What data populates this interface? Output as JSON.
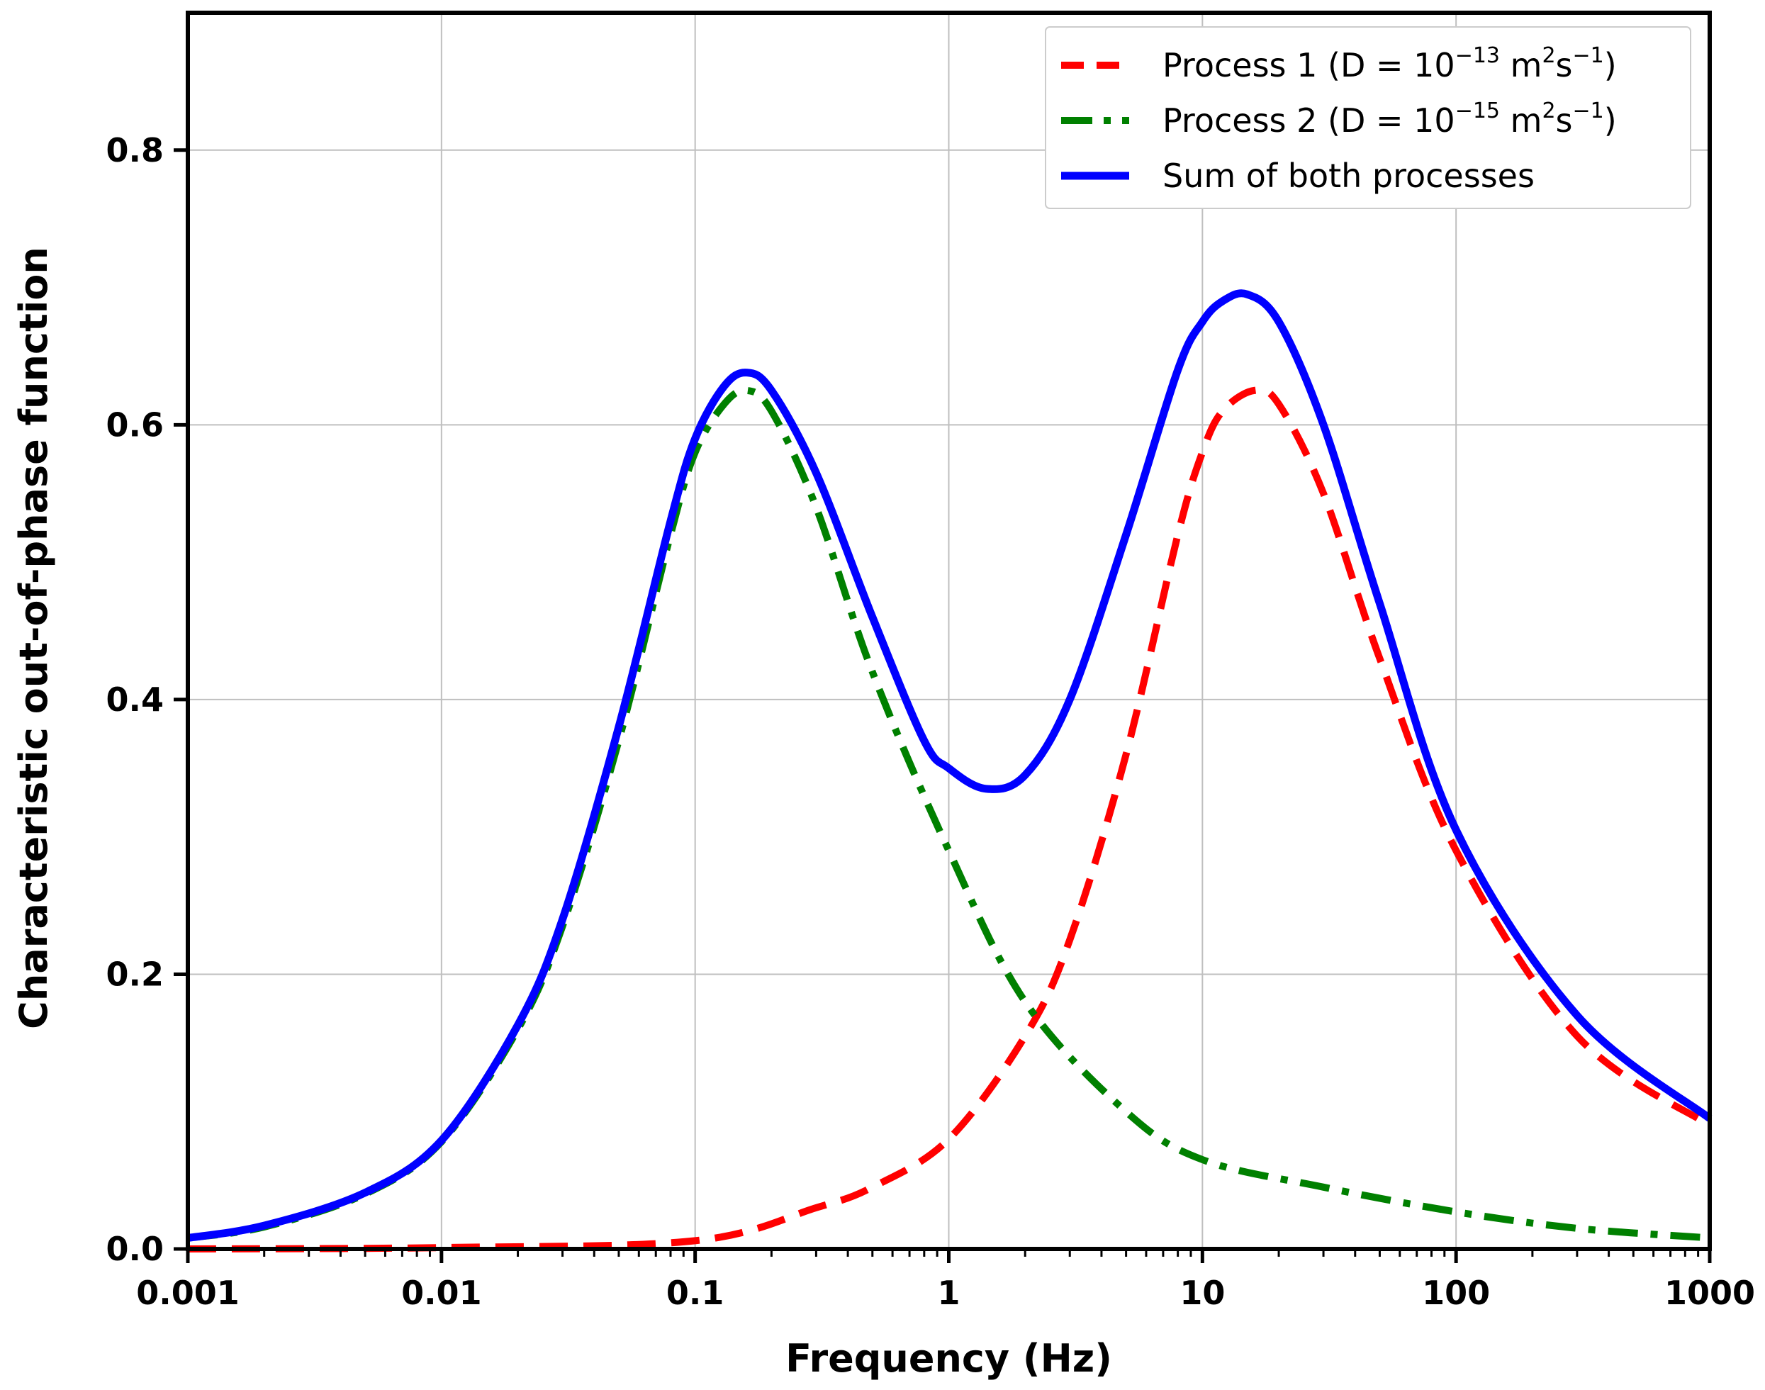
{
  "chart_data": {
    "type": "line",
    "title": "",
    "xlabel": "Frequency (Hz)",
    "ylabel": "Characteristic out-of-phase function",
    "xscale": "log",
    "xlim": [
      0.001,
      1000
    ],
    "ylim": [
      0,
      0.9
    ],
    "grid": true,
    "legend_position": "top-right",
    "x_ticks": [
      0.001,
      0.01,
      0.1,
      1,
      10,
      100,
      1000
    ],
    "x_tick_labels": [
      "0.001",
      "0.01",
      "0.1",
      "1",
      "10",
      "100",
      "1000"
    ],
    "y_ticks": [
      0.0,
      0.2,
      0.4,
      0.6,
      0.8
    ],
    "y_tick_labels": [
      "0.0",
      "0.2",
      "0.4",
      "0.6",
      "0.8"
    ],
    "series": [
      {
        "name": "Process 1",
        "legend_prefix": "Process 1 (D = 10",
        "legend_exp": "−13",
        "legend_unit_m": " m",
        "legend_unit_m_exp": "2",
        "legend_unit_s": "s",
        "legend_unit_s_exp": "−1",
        "legend_suffix": ")",
        "color": "#ff0000",
        "style": "dashed",
        "x": [
          0.001,
          0.01,
          0.1,
          0.3,
          0.5,
          1,
          2,
          3,
          5,
          8,
          10,
          12,
          16,
          20,
          30,
          50,
          100,
          300,
          1000
        ],
        "y": [
          0.0,
          0.001,
          0.006,
          0.03,
          0.045,
          0.08,
          0.155,
          0.225,
          0.36,
          0.52,
          0.58,
          0.61,
          0.625,
          0.615,
          0.55,
          0.43,
          0.29,
          0.155,
          0.09
        ]
      },
      {
        "name": "Process 2",
        "legend_prefix": "Process 2 (D = 10",
        "legend_exp": "−15",
        "legend_unit_m": " m",
        "legend_unit_m_exp": "2",
        "legend_unit_s": "s",
        "legend_unit_s_exp": "−1",
        "legend_suffix": ")",
        "color": "#008000",
        "style": "dashdot",
        "x": [
          0.001,
          0.002,
          0.005,
          0.01,
          0.02,
          0.03,
          0.05,
          0.08,
          0.1,
          0.13,
          0.16,
          0.2,
          0.3,
          0.5,
          1,
          2,
          5,
          10,
          30,
          100,
          300,
          1000
        ],
        "y": [
          0.008,
          0.016,
          0.04,
          0.078,
          0.16,
          0.235,
          0.37,
          0.52,
          0.58,
          0.615,
          0.625,
          0.61,
          0.54,
          0.42,
          0.29,
          0.18,
          0.1,
          0.065,
          0.045,
          0.027,
          0.015,
          0.008
        ]
      },
      {
        "name": "Sum of both processes",
        "legend_label": "Sum of both processes",
        "color": "#0000ff",
        "style": "solid",
        "x": [
          0.001,
          0.002,
          0.005,
          0.01,
          0.02,
          0.03,
          0.05,
          0.08,
          0.1,
          0.13,
          0.16,
          0.2,
          0.3,
          0.5,
          0.8,
          1,
          1.4,
          2,
          3,
          5,
          8,
          10,
          12,
          15,
          20,
          30,
          50,
          100,
          300,
          1000
        ],
        "y": [
          0.008,
          0.017,
          0.041,
          0.079,
          0.163,
          0.24,
          0.38,
          0.53,
          0.59,
          0.628,
          0.638,
          0.625,
          0.565,
          0.46,
          0.37,
          0.35,
          0.335,
          0.345,
          0.4,
          0.52,
          0.64,
          0.675,
          0.69,
          0.695,
          0.675,
          0.6,
          0.47,
          0.305,
          0.17,
          0.095
        ]
      }
    ]
  }
}
